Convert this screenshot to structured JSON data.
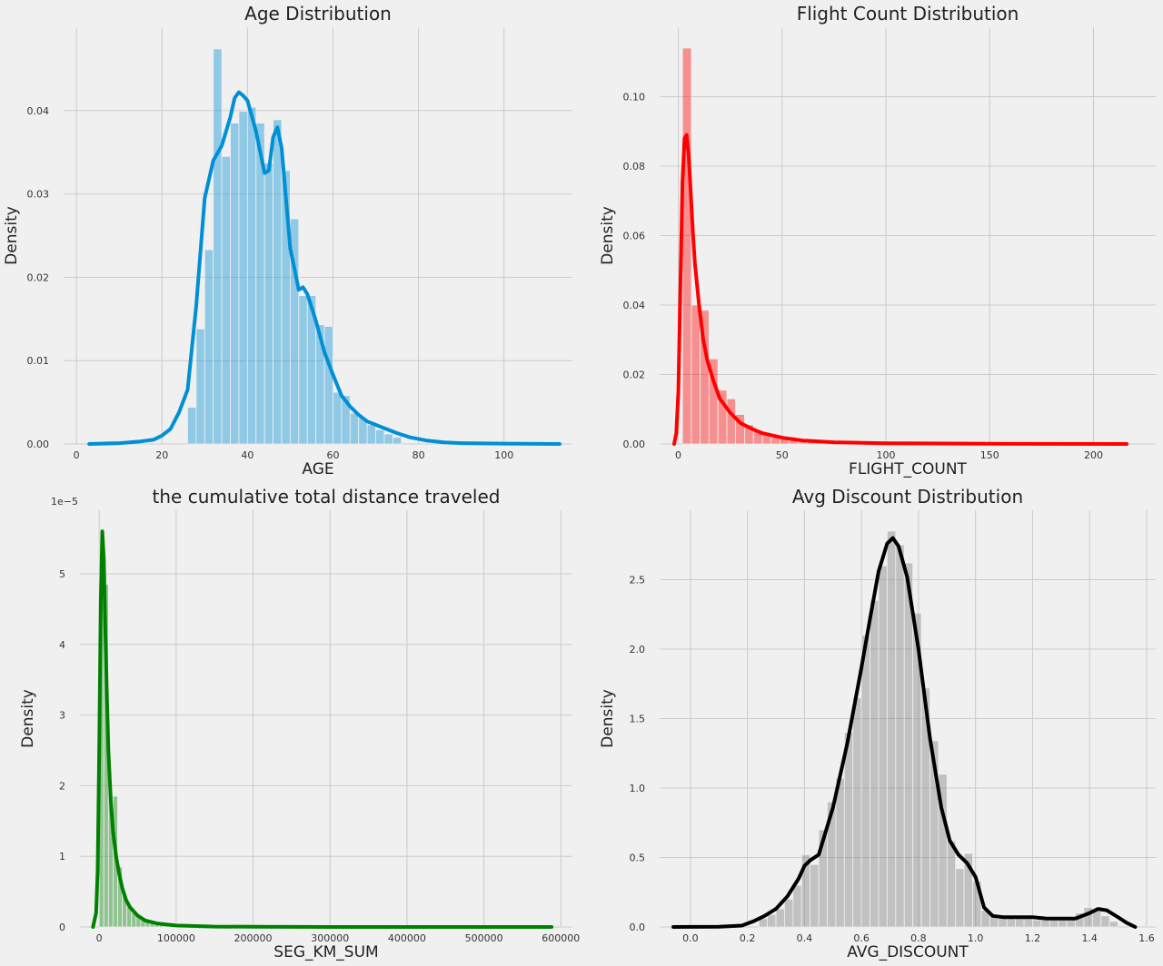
{
  "chart_data": [
    {
      "type": "histogram+kde",
      "title": "Age Distribution",
      "xlabel": "AGE",
      "ylabel": "Density",
      "color": "#008fd5",
      "xlim": [
        -3,
        116
      ],
      "ylim": [
        0,
        0.05
      ],
      "xticks": [
        0,
        20,
        40,
        60,
        80,
        100
      ],
      "xtick_labels": [
        "0",
        "20",
        "40",
        "60",
        "80",
        "100"
      ],
      "yticks": [
        0,
        0.01,
        0.02,
        0.03,
        0.04
      ],
      "ytick_labels": [
        "0.00",
        "0.01",
        "0.02",
        "0.03",
        "0.04"
      ],
      "bins": {
        "edges": [
          26,
          28,
          30,
          32,
          34,
          36,
          38,
          40,
          42,
          44,
          46,
          48,
          50,
          52,
          54,
          56,
          58,
          60,
          62,
          64,
          66,
          68,
          70,
          72,
          74,
          76
        ],
        "heights": [
          0.0044,
          0.0138,
          0.0233,
          0.0474,
          0.0345,
          0.0385,
          0.0399,
          0.0404,
          0.0385,
          0.0337,
          0.0389,
          0.0328,
          0.027,
          0.0178,
          0.0178,
          0.0143,
          0.0141,
          0.0062,
          0.0058,
          0.0037,
          0.0031,
          0.0023,
          0.0017,
          0.0012,
          0.0008
        ]
      },
      "kde": {
        "x": [
          3,
          10,
          15,
          18,
          20,
          22,
          24,
          26,
          28,
          30,
          32,
          34,
          36,
          37,
          38,
          39,
          40,
          42,
          44,
          45,
          46,
          47,
          48,
          50,
          52,
          53,
          54,
          56,
          58,
          60,
          62,
          64,
          66,
          68,
          70,
          72,
          75,
          78,
          82,
          86,
          90,
          100,
          113
        ],
        "y": [
          0,
          0.0001,
          0.0003,
          0.0005,
          0.001,
          0.0018,
          0.0038,
          0.0065,
          0.0165,
          0.0295,
          0.034,
          0.0358,
          0.0392,
          0.0415,
          0.0422,
          0.0418,
          0.0412,
          0.0375,
          0.0325,
          0.0328,
          0.0368,
          0.038,
          0.0355,
          0.0235,
          0.0185,
          0.0188,
          0.018,
          0.0148,
          0.011,
          0.0083,
          0.0058,
          0.0045,
          0.0035,
          0.0027,
          0.0023,
          0.0019,
          0.0013,
          0.0008,
          0.0004,
          0.0002,
          0.0001,
          4e-05,
          0
        ]
      }
    },
    {
      "type": "histogram+kde",
      "title": "Flight Count Distribution",
      "xlabel": "FLIGHT_COUNT",
      "ylabel": "Density",
      "color": "#ff0000",
      "xlim": [
        -9,
        230
      ],
      "ylim": [
        0,
        0.12
      ],
      "xticks": [
        0,
        50,
        100,
        150,
        200
      ],
      "xtick_labels": [
        "0",
        "50",
        "100",
        "150",
        "200"
      ],
      "yticks": [
        0,
        0.02,
        0.04,
        0.06,
        0.08,
        0.1
      ],
      "ytick_labels": [
        "0.00",
        "0.02",
        "0.04",
        "0.06",
        "0.08",
        "0.10"
      ],
      "bins": {
        "edges": [
          2,
          6.3,
          10.5,
          14.8,
          19.1,
          23.4,
          27.6,
          31.9,
          36.2,
          40.5,
          44.7,
          49,
          53.3,
          57.6,
          61.8,
          66.1,
          70.4
        ],
        "heights": [
          0.114,
          0.04,
          0.0385,
          0.0245,
          0.0155,
          0.013,
          0.0085,
          0.0055,
          0.004,
          0.003,
          0.002,
          0.0015,
          0.0012,
          0.0009,
          0.0006,
          0.0004
        ]
      },
      "kde": {
        "x": [
          -2,
          -1,
          0,
          1,
          2,
          3,
          4,
          5,
          6,
          7,
          8,
          10,
          12,
          14,
          17,
          20,
          25,
          30,
          35,
          40,
          50,
          60,
          75,
          100,
          150,
          216
        ],
        "y": [
          0,
          0.003,
          0.015,
          0.045,
          0.075,
          0.088,
          0.089,
          0.083,
          0.072,
          0.061,
          0.052,
          0.04,
          0.03,
          0.024,
          0.018,
          0.013,
          0.009,
          0.006,
          0.0045,
          0.0032,
          0.0018,
          0.001,
          0.0005,
          0.0002,
          5e-05,
          0
        ]
      }
    },
    {
      "type": "histogram+kde",
      "title": "the cumulative total distance traveled",
      "xlabel": "SEG_KM_SUM",
      "ylabel": "Density",
      "color": "#008000",
      "offset_label": "1e−5",
      "xlim": [
        -25000,
        615000
      ],
      "ylim": [
        0,
        5.9
      ],
      "xticks": [
        0,
        100000,
        200000,
        300000,
        400000,
        500000,
        600000
      ],
      "xtick_labels": [
        "0",
        "100000",
        "200000",
        "300000",
        "400000",
        "500000",
        "600000"
      ],
      "yticks": [
        0,
        1,
        2,
        3,
        4,
        5
      ],
      "ytick_labels": [
        "0",
        "1",
        "2",
        "3",
        "4",
        "5"
      ],
      "bins": {
        "edges": [
          0,
          6000,
          12000,
          18000,
          24000,
          30000,
          36000,
          42000,
          48000,
          54000,
          60000,
          66000,
          72000,
          78000,
          84000,
          90000,
          96000,
          102000
        ],
        "heights": [
          5.3,
          4.85,
          1.85,
          1.85,
          0.85,
          0.45,
          0.3,
          0.2,
          0.14,
          0.1,
          0.07,
          0.05,
          0.035,
          0.025,
          0.018,
          0.012,
          0.008
        ]
      },
      "kde": {
        "x": [
          -8000,
          -4000,
          -2000,
          0,
          2000,
          4000,
          6000,
          8000,
          10000,
          12000,
          15000,
          18000,
          22000,
          26000,
          30000,
          35000,
          40000,
          50000,
          60000,
          75000,
          100000,
          150000,
          200000,
          300000,
          588000
        ],
        "y": [
          0,
          0.2,
          0.8,
          2.5,
          4.6,
          5.6,
          5.2,
          4.2,
          3.3,
          2.5,
          1.8,
          1.35,
          1.0,
          0.75,
          0.55,
          0.38,
          0.28,
          0.16,
          0.09,
          0.05,
          0.02,
          0.005,
          0.002,
          0.0005,
          0
        ]
      }
    },
    {
      "type": "histogram+kde",
      "title": "Avg Discount Distribution",
      "xlabel": "AVG_DISCOUNT",
      "ylabel": "Density",
      "color": "#000000",
      "bar_color": "#7a7a7a",
      "xlim": [
        -0.108,
        1.632
      ],
      "ylim": [
        0,
        3.0
      ],
      "xticks": [
        0,
        0.2,
        0.4,
        0.6,
        0.8,
        1.0,
        1.2,
        1.4,
        1.6
      ],
      "xtick_labels": [
        "0.0",
        "0.2",
        "0.4",
        "0.6",
        "0.8",
        "1.0",
        "1.2",
        "1.4",
        "1.6"
      ],
      "yticks": [
        0,
        0.5,
        1,
        1.5,
        2,
        2.5
      ],
      "ytick_labels": [
        "0.0",
        "0.5",
        "1.0",
        "1.5",
        "2.0",
        "2.5"
      ],
      "bins": {
        "edges": [
          0.24,
          0.27,
          0.3,
          0.33,
          0.36,
          0.39,
          0.42,
          0.45,
          0.48,
          0.51,
          0.54,
          0.57,
          0.6,
          0.63,
          0.66,
          0.69,
          0.72,
          0.75,
          0.78,
          0.81,
          0.84,
          0.87,
          0.9,
          0.93,
          0.96,
          0.99,
          1.02,
          1.05,
          1.08,
          1.11,
          1.14,
          1.17,
          1.2,
          1.23,
          1.26,
          1.29,
          1.32,
          1.35,
          1.38,
          1.41,
          1.44,
          1.47,
          1.5
        ],
        "heights": [
          0.06,
          0.09,
          0.13,
          0.2,
          0.3,
          0.52,
          0.45,
          0.7,
          0.9,
          1.07,
          1.4,
          1.65,
          2.1,
          2.35,
          2.6,
          2.85,
          2.75,
          2.62,
          2.26,
          1.72,
          1.34,
          1.1,
          0.62,
          0.42,
          0.53,
          0.33,
          0.12,
          0.08,
          0.07,
          0.06,
          0.06,
          0.06,
          0.05,
          0.05,
          0.05,
          0.06,
          0.07,
          0.1,
          0.14,
          0.12,
          0.08,
          0.04
        ]
      },
      "kde": {
        "x": [
          -0.06,
          0.1,
          0.18,
          0.22,
          0.26,
          0.3,
          0.34,
          0.38,
          0.4,
          0.42,
          0.45,
          0.5,
          0.55,
          0.6,
          0.63,
          0.66,
          0.69,
          0.71,
          0.73,
          0.76,
          0.8,
          0.84,
          0.88,
          0.91,
          0.94,
          0.97,
          1.0,
          1.03,
          1.06,
          1.1,
          1.15,
          1.2,
          1.25,
          1.3,
          1.35,
          1.4,
          1.43,
          1.46,
          1.5,
          1.53,
          1.56
        ],
        "y": [
          0,
          0.002,
          0.01,
          0.04,
          0.08,
          0.13,
          0.22,
          0.35,
          0.44,
          0.48,
          0.52,
          0.86,
          1.32,
          1.87,
          2.22,
          2.56,
          2.76,
          2.8,
          2.74,
          2.52,
          2.0,
          1.36,
          0.86,
          0.62,
          0.52,
          0.46,
          0.36,
          0.14,
          0.08,
          0.07,
          0.07,
          0.07,
          0.06,
          0.06,
          0.06,
          0.1,
          0.13,
          0.12,
          0.07,
          0.03,
          0
        ]
      }
    }
  ]
}
